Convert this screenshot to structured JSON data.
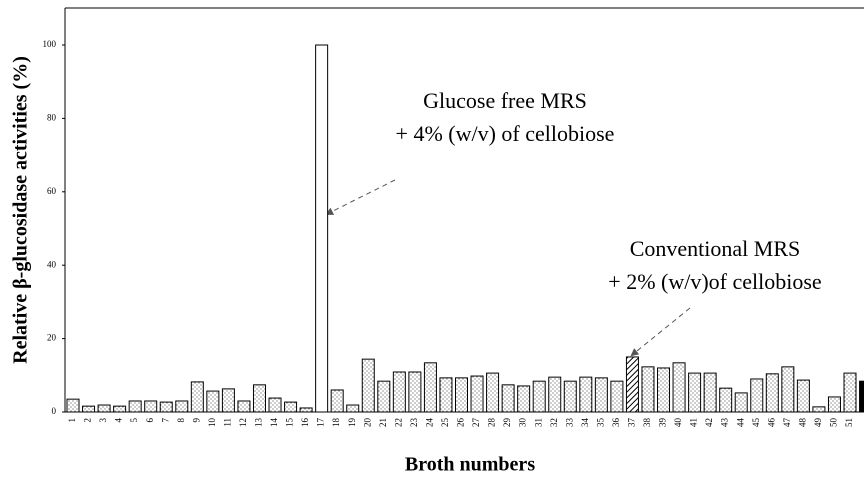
{
  "chart_data": {
    "type": "bar",
    "y_label": "Relative β-glucosidase activities (%)",
    "x_label": "Broth numbers",
    "categories": [
      "1",
      "2",
      "3",
      "4",
      "5",
      "6",
      "7",
      "8",
      "9",
      "10",
      "11",
      "12",
      "13",
      "14",
      "15",
      "16",
      "17",
      "18",
      "19",
      "20",
      "21",
      "22",
      "23",
      "24",
      "25",
      "26",
      "27",
      "28",
      "29",
      "30",
      "31",
      "32",
      "33",
      "34",
      "35",
      "36",
      "37",
      "38",
      "39",
      "40",
      "41",
      "42",
      "43",
      "44",
      "45",
      "46",
      "47",
      "48",
      "49",
      "50",
      "51",
      null
    ],
    "values": [
      3.5,
      1.6,
      1.9,
      1.6,
      3,
      3,
      2.7,
      3,
      8.2,
      5.7,
      6.3,
      3,
      7.4,
      3.8,
      2.7,
      1.1,
      100,
      6,
      1.9,
      14.4,
      8.4,
      10.9,
      10.9,
      13.4,
      9.3,
      9.3,
      9.8,
      10.6,
      7.4,
      7.1,
      8.4,
      9.5,
      8.4,
      9.5,
      9.3,
      8.4,
      15,
      12.3,
      12,
      13.4,
      10.6,
      10.6,
      6.5,
      5.2,
      9,
      10.4,
      12.3,
      8.7,
      1.4,
      4.1,
      10.6,
      8.4
    ],
    "fills": [
      "dotted",
      "dotted",
      "dotted",
      "dotted",
      "dotted",
      "dotted",
      "dotted",
      "dotted",
      "dotted",
      "dotted",
      "dotted",
      "dotted",
      "dotted",
      "dotted",
      "dotted",
      "dotted",
      "white",
      "dotted",
      "dotted",
      "dotted",
      "dotted",
      "dotted",
      "dotted",
      "dotted",
      "dotted",
      "dotted",
      "dotted",
      "dotted",
      "dotted",
      "dotted",
      "dotted",
      "dotted",
      "dotted",
      "dotted",
      "dotted",
      "dotted",
      "hatched",
      "dotted",
      "dotted",
      "dotted",
      "dotted",
      "dotted",
      "dotted",
      "dotted",
      "dotted",
      "dotted",
      "dotted",
      "dotted",
      "dotted",
      "dotted",
      "dotted",
      "black"
    ],
    "ylim": [
      0,
      100
    ],
    "yticks": [
      0,
      20,
      40,
      60,
      80,
      100
    ],
    "annotations": [
      {
        "lines": [
          "Glucose free MRS",
          "+ 4% (w/v) of cellobiose"
        ]
      },
      {
        "lines": [
          "Conventional MRS",
          "+ 2% (w/v)of cellobiose"
        ]
      }
    ]
  }
}
